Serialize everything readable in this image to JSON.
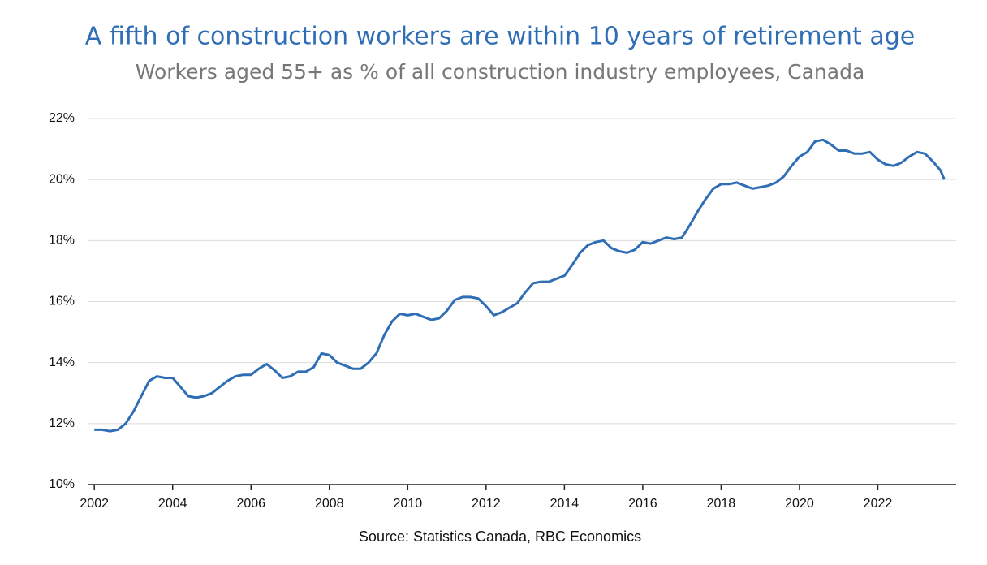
{
  "chart_data": {
    "type": "line",
    "title": "A fifth of construction workers are within 10 years of retirement age",
    "subtitle": "Workers aged 55+ as % of all construction industry employees, Canada",
    "source": "Source: Statistics Canada, RBC Economics",
    "x": [
      2002.0,
      2002.2,
      2002.4,
      2002.6,
      2002.8,
      2003.0,
      2003.2,
      2003.4,
      2003.6,
      2003.8,
      2004.0,
      2004.2,
      2004.4,
      2004.6,
      2004.8,
      2005.0,
      2005.2,
      2005.4,
      2005.6,
      2005.8,
      2006.0,
      2006.2,
      2006.4,
      2006.6,
      2006.8,
      2007.0,
      2007.2,
      2007.4,
      2007.6,
      2007.8,
      2008.0,
      2008.2,
      2008.4,
      2008.6,
      2008.8,
      2009.0,
      2009.2,
      2009.4,
      2009.6,
      2009.8,
      2010.0,
      2010.2,
      2010.4,
      2010.6,
      2010.8,
      2011.0,
      2011.2,
      2011.4,
      2011.6,
      2011.8,
      2012.0,
      2012.2,
      2012.4,
      2012.6,
      2012.8,
      2013.0,
      2013.2,
      2013.4,
      2013.6,
      2013.8,
      2014.0,
      2014.2,
      2014.4,
      2014.6,
      2014.8,
      2015.0,
      2015.2,
      2015.4,
      2015.6,
      2015.8,
      2016.0,
      2016.2,
      2016.4,
      2016.6,
      2016.8,
      2017.0,
      2017.2,
      2017.4,
      2017.6,
      2017.8,
      2018.0,
      2018.2,
      2018.4,
      2018.6,
      2018.8,
      2019.0,
      2019.2,
      2019.4,
      2019.6,
      2019.8,
      2020.0,
      2020.2,
      2020.4,
      2020.6,
      2020.8,
      2021.0,
      2021.2,
      2021.4,
      2021.6,
      2021.8,
      2022.0,
      2022.2,
      2022.4,
      2022.6,
      2022.8,
      2023.0,
      2023.2,
      2023.4,
      2023.6,
      2023.7
    ],
    "series": [
      {
        "color": "#2f6db5",
        "values": [
          11.8,
          11.8,
          11.75,
          11.8,
          12.0,
          12.4,
          12.9,
          13.4,
          13.55,
          13.5,
          13.5,
          13.2,
          12.9,
          12.85,
          12.9,
          13.0,
          13.2,
          13.4,
          13.55,
          13.6,
          13.6,
          13.8,
          13.95,
          13.75,
          13.5,
          13.55,
          13.7,
          13.7,
          13.85,
          14.3,
          14.25,
          14.0,
          13.9,
          13.8,
          13.8,
          14.0,
          14.3,
          14.9,
          15.35,
          15.6,
          15.55,
          15.6,
          15.5,
          15.4,
          15.45,
          15.7,
          16.05,
          16.15,
          16.15,
          16.1,
          15.85,
          15.55,
          15.65,
          15.8,
          15.95,
          16.3,
          16.6,
          16.65,
          16.65,
          16.75,
          16.85,
          17.2,
          17.6,
          17.85,
          17.95,
          18.0,
          17.75,
          17.65,
          17.6,
          17.7,
          17.95,
          17.9,
          18.0,
          18.1,
          18.05,
          18.1,
          18.5,
          18.95,
          19.35,
          19.7,
          19.85,
          19.85,
          19.9,
          19.8,
          19.7,
          19.75,
          19.8,
          19.9,
          20.1,
          20.45,
          20.75,
          20.9,
          21.25,
          21.3,
          21.15,
          20.95,
          20.95,
          20.85,
          20.85,
          20.9,
          20.65,
          20.5,
          20.45,
          20.55,
          20.75,
          20.9,
          20.85,
          20.6,
          20.3,
          20.0
        ]
      }
    ],
    "xlim": [
      2001.83,
      2024.0
    ],
    "xticks": [
      2002,
      2004,
      2006,
      2008,
      2010,
      2012,
      2014,
      2016,
      2018,
      2020,
      2022
    ],
    "ylim": [
      10,
      22
    ],
    "yticks": [
      {
        "value": 10,
        "label": "10%"
      },
      {
        "value": 12,
        "label": "12%"
      },
      {
        "value": 14,
        "label": "14%"
      },
      {
        "value": 16,
        "label": "16%"
      },
      {
        "value": 18,
        "label": "18%"
      },
      {
        "value": 20,
        "label": "20%"
      },
      {
        "value": 22,
        "label": "22%"
      }
    ],
    "grid": true
  }
}
